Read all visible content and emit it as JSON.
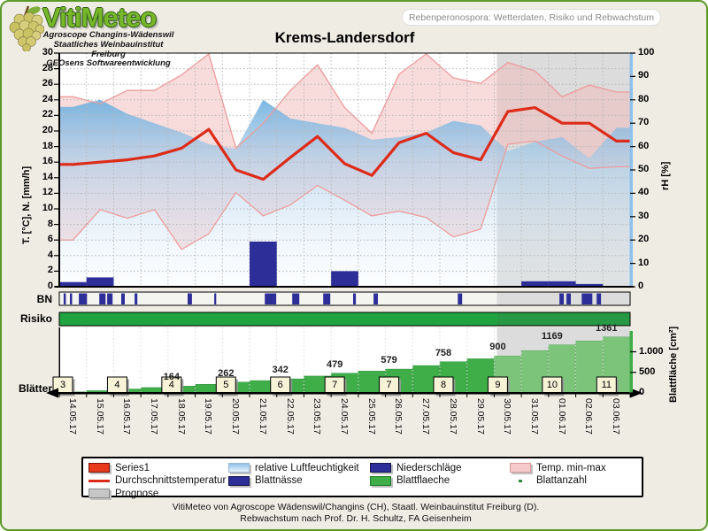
{
  "header": {
    "logo_title": "VitiMeteo",
    "logo_sub1": "Agroscope Changins-Wädenswil",
    "logo_sub2": "Staatliches Weinbauinstitut Freiburg",
    "logo_sub3": "GEOsens Softwareentwicklung",
    "pill": "Rebenperonospora: Wetterdaten, Risiko und Rebwachstum"
  },
  "title": "Krems-Landersdorf",
  "axes": {
    "left_title": "T. [°C], N. [mm/h]",
    "right_title": "rH [%]",
    "leaf_title": "Blattfläche [cm²]",
    "left_ticks": [
      "0",
      "2",
      "4",
      "6",
      "8",
      "10",
      "12",
      "14",
      "16",
      "18",
      "20",
      "22",
      "24",
      "26",
      "28",
      "30"
    ],
    "right_ticks": [
      "0",
      "10",
      "20",
      "30",
      "40",
      "50",
      "60",
      "70",
      "80",
      "90",
      "100"
    ],
    "leaf_ticks": [
      {
        "v": 0,
        "t": "0"
      },
      {
        "v": 500,
        "t": "500"
      },
      {
        "v": 1000,
        "t": "1.000"
      }
    ]
  },
  "rows": {
    "bn": "BN",
    "risiko": "Risiko",
    "blaetter": "Blätter"
  },
  "colors": {
    "red_line": "#dd2b19",
    "navy": "#2e2e99",
    "leaf_green": "#3fae49",
    "leaf_green_forecast": "#7cc47a",
    "risiko_green": "#1fa440",
    "pink_fill": "#f2b8b8",
    "pink_border": "#ee9c9c",
    "rh_blue": "#5ea8dc",
    "forecast_gray": "#dcdcdc"
  },
  "chart_data": {
    "type": "area",
    "title": "Krems-Landersdorf",
    "x": [
      "14.05.17",
      "15.05.17",
      "16.05.17",
      "17.05.17",
      "18.05.17",
      "19.05.17",
      "20.05.17",
      "21.05.17",
      "22.05.17",
      "23.05.17",
      "24.05.17",
      "25.05.17",
      "26.05.17",
      "27.05.17",
      "28.05.17",
      "29.05.17",
      "30.05.17",
      "31.05.17",
      "01.06.17",
      "02.06.17",
      "03.06.17"
    ],
    "ylim_left": [
      0,
      30
    ],
    "ylim_right": [
      0,
      100
    ],
    "forecast_start_day": 16.1,
    "series": [
      {
        "name": "Durchschnittstemperatur",
        "unit": "°C",
        "values": [
          15.7,
          16.0,
          16.3,
          16.8,
          17.8,
          20.2,
          15.0,
          13.8,
          16.6,
          19.3,
          15.8,
          14.3,
          18.5,
          19.7,
          17.2,
          16.3,
          22.5,
          23.0,
          21.0,
          21.0,
          18.7
        ]
      },
      {
        "name": "Temp. max",
        "unit": "°C",
        "values": [
          24.4,
          23.5,
          25.2,
          25.2,
          27.2,
          29.9,
          17.8,
          21.0,
          25.2,
          28.5,
          23.0,
          19.7,
          27.3,
          29.9,
          26.8,
          26.1,
          28.8,
          27.7,
          24.4,
          25.9,
          25.0
        ]
      },
      {
        "name": "Temp. min",
        "unit": "°C",
        "values": [
          6.0,
          9.9,
          8.8,
          9.9,
          4.8,
          6.8,
          12.1,
          9.1,
          10.5,
          13.0,
          11.1,
          9.1,
          9.7,
          8.9,
          6.4,
          7.4,
          18.3,
          18.7,
          16.8,
          15.2,
          15.4
        ]
      },
      {
        "name": "relative Luftfeuchtigkeit",
        "unit": "%",
        "values": [
          77,
          80,
          74,
          70,
          66,
          61,
          59,
          80,
          72,
          70,
          68,
          63,
          64,
          66,
          71,
          69,
          58,
          62,
          64,
          55,
          68
        ]
      },
      {
        "name": "Niederschläge",
        "unit": "mm/h",
        "values": [
          0.6,
          1.2,
          0,
          0,
          0,
          0,
          0,
          5.8,
          0,
          0,
          2.0,
          0,
          0,
          0,
          0,
          0,
          0,
          0.7,
          0.7,
          0.35,
          0
        ]
      },
      {
        "name": "Blattflaeche",
        "unit": "cm²",
        "values": [
          25,
          55,
          95,
          130,
          164,
          210,
          262,
          300,
          342,
          410,
          479,
          530,
          579,
          665,
          758,
          830,
          900,
          1030,
          1169,
          1265,
          1361
        ]
      }
    ],
    "blattnaesse_periods": [
      [
        0.16,
        0.08
      ],
      [
        0.39,
        0.08
      ],
      [
        0.72,
        0.3
      ],
      [
        1.47,
        0.23
      ],
      [
        1.76,
        0.2
      ],
      [
        2.28,
        0.13
      ],
      [
        2.77,
        0.1
      ],
      [
        4.72,
        0.16
      ],
      [
        5.7,
        0.07
      ],
      [
        7.56,
        0.42
      ],
      [
        8.57,
        0.26
      ],
      [
        9.71,
        0.26
      ],
      [
        10.81,
        0.1
      ],
      [
        11.56,
        0.16
      ],
      [
        14.66,
        0.16
      ],
      [
        18.4,
        0.16
      ],
      [
        18.66,
        0.16
      ],
      [
        19.22,
        0.39
      ],
      [
        19.77,
        0.16
      ]
    ],
    "risiko": "high-all-days",
    "leaf_area_labels": [
      {
        "i": 4,
        "t": "164"
      },
      {
        "i": 6,
        "t": "262"
      },
      {
        "i": 8,
        "t": "342"
      },
      {
        "i": 10,
        "t": "479"
      },
      {
        "i": 12,
        "t": "579"
      },
      {
        "i": 14,
        "t": "758"
      },
      {
        "i": 16,
        "t": "900"
      },
      {
        "i": 18,
        "t": "1169"
      },
      {
        "i": 20,
        "t": "1361"
      }
    ],
    "leaf_counts": [
      {
        "i": 0,
        "t": "3"
      },
      {
        "i": 2,
        "t": "4"
      },
      {
        "i": 4,
        "t": "4"
      },
      {
        "i": 6,
        "t": "5"
      },
      {
        "i": 8,
        "t": "6"
      },
      {
        "i": 10,
        "t": "7"
      },
      {
        "i": 12,
        "t": "7"
      },
      {
        "i": 14,
        "t": "8"
      },
      {
        "i": 16,
        "t": "9"
      },
      {
        "i": 18,
        "t": "10"
      },
      {
        "i": 20,
        "t": "11"
      }
    ]
  },
  "legend": {
    "items": [
      {
        "swatch": "rect-red",
        "label": "Series1",
        "col": 0,
        "row": 0
      },
      {
        "swatch": "line-red",
        "label": "Durchschnittstemperatur",
        "col": 0,
        "row": 1
      },
      {
        "swatch": "rect-gray",
        "label": "Prognose",
        "col": 0,
        "row": 2
      },
      {
        "swatch": "grad-blue",
        "label": "relative Luftfeuchtigkeit",
        "col": 1,
        "row": 0
      },
      {
        "swatch": "rect-navy",
        "label": "Blattnässe",
        "col": 1,
        "row": 1
      },
      {
        "swatch": "rect-navy",
        "label": "Niederschläge",
        "col": 2,
        "row": 0
      },
      {
        "swatch": "rect-green",
        "label": "Blattflaeche",
        "col": 2,
        "row": 1
      },
      {
        "swatch": "rect-pink",
        "label": "Temp. min-max",
        "col": 3,
        "row": 0
      },
      {
        "swatch": "dot-green",
        "label": "Blattanzahl",
        "col": 3,
        "row": 1
      }
    ]
  },
  "footer": {
    "line1": "VitiMeteo von Agroscope Wädenswil/Changins (CH), Staatl. Weinbauinstitut Freiburg (D).",
    "line2": "Rebwachstum nach Prof. Dr. H. Schultz, FA Geisenheim"
  }
}
